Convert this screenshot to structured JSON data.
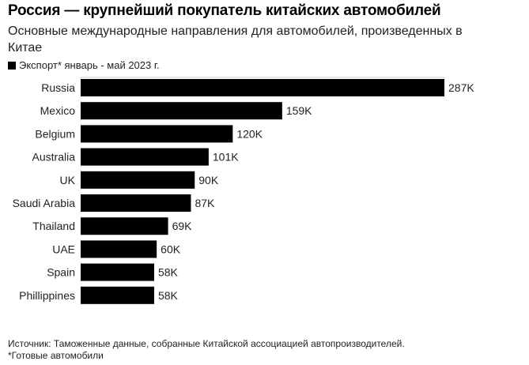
{
  "title": "Россия — крупнейший покупатель китайских автомобилей",
  "subtitle": "Основные международные направления для автомобилей, произведенных в Китае",
  "legend_label": "Экспорт* январь - май 2023 г.",
  "footer": {
    "source": "Источник: Таможенные данные, собранные Китайской ассоциацией автопроизводителей.",
    "note": "*Готовые автомобили"
  },
  "colors": {
    "bar": "#000000",
    "axis": "#cccccc"
  },
  "chart_data": {
    "type": "bar",
    "orientation": "horizontal",
    "categories": [
      "Russia",
      "Mexico",
      "Belgium",
      "Australia",
      "UK",
      "Saudi Arabia",
      "Thailand",
      "UAE",
      "Spain",
      "Phillippines"
    ],
    "series": [
      {
        "name": "Экспорт* январь - май 2023 г.",
        "values": [
          287000,
          159000,
          120000,
          101000,
          90000,
          87000,
          69000,
          60000,
          58000,
          58000
        ]
      }
    ],
    "data_labels": [
      "287K",
      "159K",
      "120K",
      "101K",
      "90K",
      "87K",
      "69K",
      "60K",
      "58K",
      "58K"
    ],
    "xlim": [
      0,
      287000
    ],
    "grid": false
  }
}
